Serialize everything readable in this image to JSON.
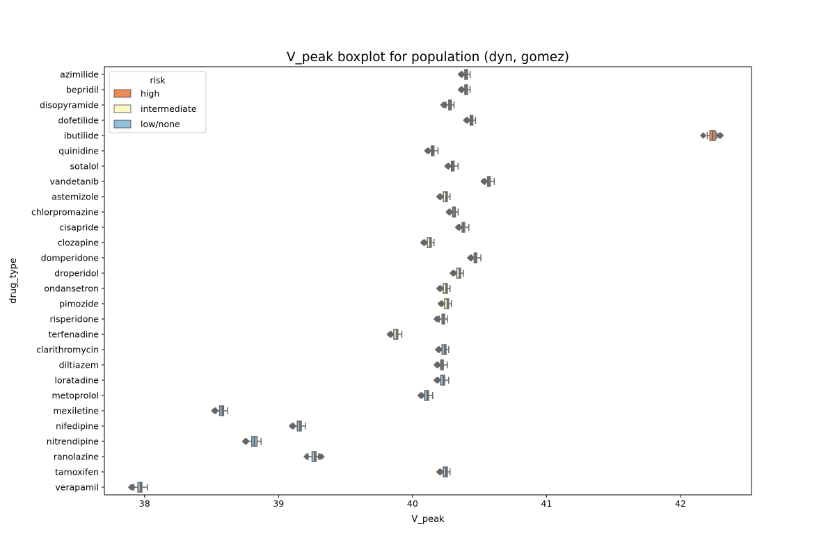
{
  "chart_data": {
    "type": "boxplot",
    "orientation": "horizontal",
    "title": "V_peak boxplot for population (dyn, gomez)",
    "xlabel": "V_peak",
    "ylabel": "drug_type",
    "xlim": [
      37.7,
      42.53
    ],
    "xticks": [
      38,
      39,
      40,
      41,
      42
    ],
    "grid": false,
    "legend": {
      "title": "risk",
      "placement": "top-left",
      "entries": [
        {
          "label": "high",
          "color": "#ee8a59"
        },
        {
          "label": "intermediate",
          "color": "#fbf8c4"
        },
        {
          "label": "low/none",
          "color": "#91bfdb"
        }
      ]
    },
    "box_color": "#666666",
    "categories": [
      "azimilide",
      "bepridil",
      "disopyramide",
      "dofetilide",
      "ibutilide",
      "quinidine",
      "sotalol",
      "vandetanib",
      "astemizole",
      "chlorpromazine",
      "cisapride",
      "clozapine",
      "domperidone",
      "droperidol",
      "ondansetron",
      "pimozide",
      "risperidone",
      "terfenadine",
      "clarithromycin",
      "diltiazem",
      "loratadine",
      "metoprolol",
      "mexiletine",
      "nifedipine",
      "nitrendipine",
      "ranolazine",
      "tamoxifen",
      "verapamil"
    ],
    "series": [
      {
        "category": "azimilide",
        "risk": "high",
        "min": 40.37,
        "q1": 40.39,
        "median": 40.4,
        "q3": 40.41,
        "max": 40.43,
        "outliers": [
          40.36,
          40.37
        ]
      },
      {
        "category": "bepridil",
        "risk": "high",
        "min": 40.37,
        "q1": 40.39,
        "median": 40.4,
        "q3": 40.41,
        "max": 40.43,
        "outliers": [
          40.36,
          40.37
        ]
      },
      {
        "category": "disopyramide",
        "risk": "high",
        "min": 40.25,
        "q1": 40.27,
        "median": 40.28,
        "q3": 40.29,
        "max": 40.31,
        "outliers": [
          40.23,
          40.24
        ]
      },
      {
        "category": "dofetilide",
        "risk": "high",
        "min": 40.41,
        "q1": 40.43,
        "median": 40.44,
        "q3": 40.45,
        "max": 40.47,
        "outliers": [
          40.4,
          40.41
        ]
      },
      {
        "category": "ibutilide",
        "risk": "high",
        "min": 42.2,
        "q1": 42.22,
        "median": 42.24,
        "q3": 42.26,
        "max": 42.27,
        "outliers": [
          42.17,
          42.29,
          42.3
        ]
      },
      {
        "category": "quinidine",
        "risk": "high",
        "min": 40.12,
        "q1": 40.14,
        "median": 40.15,
        "q3": 40.16,
        "max": 40.19,
        "outliers": [
          40.11,
          40.12
        ]
      },
      {
        "category": "sotalol",
        "risk": "high",
        "min": 40.27,
        "q1": 40.29,
        "median": 40.3,
        "q3": 40.31,
        "max": 40.34,
        "outliers": [
          40.26,
          40.27
        ]
      },
      {
        "category": "vandetanib",
        "risk": "high",
        "min": 40.54,
        "q1": 40.56,
        "median": 40.57,
        "q3": 40.58,
        "max": 40.61,
        "outliers": [
          40.53,
          40.54
        ]
      },
      {
        "category": "astemizole",
        "risk": "intermediate",
        "min": 40.21,
        "q1": 40.23,
        "median": 40.25,
        "q3": 40.26,
        "max": 40.28,
        "outliers": [
          40.2,
          40.21
        ]
      },
      {
        "category": "chlorpromazine",
        "risk": "intermediate",
        "min": 40.28,
        "q1": 40.3,
        "median": 40.31,
        "q3": 40.32,
        "max": 40.34,
        "outliers": [
          40.27,
          40.28
        ]
      },
      {
        "category": "cisapride",
        "risk": "intermediate",
        "min": 40.35,
        "q1": 40.37,
        "median": 40.38,
        "q3": 40.39,
        "max": 40.42,
        "outliers": [
          40.34,
          40.35
        ]
      },
      {
        "category": "clozapine",
        "risk": "intermediate",
        "min": 40.09,
        "q1": 40.11,
        "median": 40.13,
        "q3": 40.14,
        "max": 40.16,
        "outliers": [
          40.08,
          40.09
        ]
      },
      {
        "category": "domperidone",
        "risk": "intermediate",
        "min": 40.44,
        "q1": 40.46,
        "median": 40.47,
        "q3": 40.48,
        "max": 40.51,
        "outliers": [
          40.43,
          40.44
        ]
      },
      {
        "category": "droperidol",
        "risk": "intermediate",
        "min": 40.31,
        "q1": 40.33,
        "median": 40.35,
        "q3": 40.36,
        "max": 40.38,
        "outliers": [
          40.3,
          40.31
        ]
      },
      {
        "category": "ondansetron",
        "risk": "intermediate",
        "min": 40.21,
        "q1": 40.23,
        "median": 40.25,
        "q3": 40.26,
        "max": 40.28,
        "outliers": [
          40.2,
          40.21
        ]
      },
      {
        "category": "pimozide",
        "risk": "intermediate",
        "min": 40.22,
        "q1": 40.24,
        "median": 40.26,
        "q3": 40.27,
        "max": 40.29,
        "outliers": [
          40.21,
          40.22
        ]
      },
      {
        "category": "risperidone",
        "risk": "intermediate",
        "min": 40.2,
        "q1": 40.22,
        "median": 40.23,
        "q3": 40.24,
        "max": 40.26,
        "outliers": [
          40.18,
          40.19
        ]
      },
      {
        "category": "terfenadine",
        "risk": "intermediate",
        "min": 39.84,
        "q1": 39.86,
        "median": 39.88,
        "q3": 39.89,
        "max": 39.92,
        "outliers": [
          39.83,
          39.84
        ]
      },
      {
        "category": "clarithromycin",
        "risk": "low/none",
        "min": 40.2,
        "q1": 40.22,
        "median": 40.24,
        "q3": 40.25,
        "max": 40.27,
        "outliers": [
          40.19,
          40.2
        ]
      },
      {
        "category": "diltiazem",
        "risk": "low/none",
        "min": 40.19,
        "q1": 40.21,
        "median": 40.22,
        "q3": 40.23,
        "max": 40.26,
        "outliers": [
          40.18,
          40.19
        ]
      },
      {
        "category": "loratadine",
        "risk": "low/none",
        "min": 40.19,
        "q1": 40.21,
        "median": 40.23,
        "q3": 40.24,
        "max": 40.27,
        "outliers": [
          40.18,
          40.19
        ]
      },
      {
        "category": "metoprolol",
        "risk": "low/none",
        "min": 40.07,
        "q1": 40.09,
        "median": 40.11,
        "q3": 40.12,
        "max": 40.15,
        "outliers": [
          40.06,
          40.07
        ]
      },
      {
        "category": "mexiletine",
        "risk": "low/none",
        "min": 38.53,
        "q1": 38.56,
        "median": 38.58,
        "q3": 38.59,
        "max": 38.62,
        "outliers": [
          38.52,
          38.53
        ]
      },
      {
        "category": "nifedipine",
        "risk": "low/none",
        "min": 39.11,
        "q1": 39.14,
        "median": 39.16,
        "q3": 39.17,
        "max": 39.2,
        "outliers": [
          39.1,
          39.11
        ]
      },
      {
        "category": "nitrendipine",
        "risk": "low/none",
        "min": 38.76,
        "q1": 38.8,
        "median": 38.82,
        "q3": 38.84,
        "max": 38.87,
        "outliers": [
          38.75,
          38.76
        ]
      },
      {
        "category": "ranolazine",
        "risk": "low/none",
        "min": 39.22,
        "q1": 39.25,
        "median": 39.27,
        "q3": 39.28,
        "max": 39.3,
        "outliers": [
          39.21,
          39.31,
          39.32
        ]
      },
      {
        "category": "tamoxifen",
        "risk": "low/none",
        "min": 40.21,
        "q1": 40.23,
        "median": 40.25,
        "q3": 40.26,
        "max": 40.28,
        "outliers": [
          40.2,
          40.21
        ]
      },
      {
        "category": "verapamil",
        "risk": "low/none",
        "min": 37.92,
        "q1": 37.95,
        "median": 37.97,
        "q3": 37.98,
        "max": 38.02,
        "outliers": [
          37.9,
          37.91
        ]
      }
    ]
  }
}
